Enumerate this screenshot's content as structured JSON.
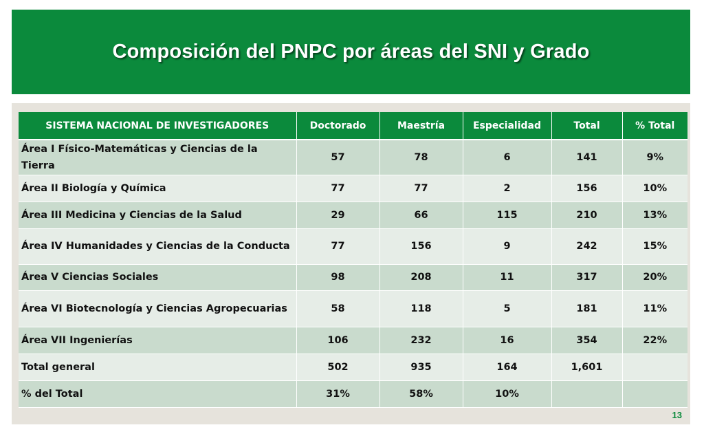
{
  "title": "Composición del PNPC  por áreas del SNI y Grado",
  "table": {
    "headers": [
      "SISTEMA NACIONAL DE INVESTIGADORES",
      "Doctorado",
      "Maestría",
      "Especialidad",
      "Total",
      "% Total"
    ],
    "rows": [
      {
        "label": "Área I Físico-Matemáticas  y Ciencias de la Tierra",
        "doctorado": "57",
        "maestria": "78",
        "especialidad": "6",
        "total": "141",
        "pct": "9%"
      },
      {
        "label": "Área II Biología y Química",
        "doctorado": "77",
        "maestria": "77",
        "especialidad": "2",
        "total": "156",
        "pct": "10%"
      },
      {
        "label": "Área III Medicina y Ciencias de la Salud",
        "doctorado": "29",
        "maestria": "66",
        "especialidad": "115",
        "total": "210",
        "pct": "13%"
      },
      {
        "label": "Área IV Humanidades  y Ciencias de la Conducta",
        "doctorado": "77",
        "maestria": "156",
        "especialidad": "9",
        "total": "242",
        "pct": "15%"
      },
      {
        "label": "Área V Ciencias Sociales",
        "doctorado": "98",
        "maestria": "208",
        "especialidad": "11",
        "total": "317",
        "pct": "20%"
      },
      {
        "label": "Área VI Biotecnología y Ciencias Agropecuarias",
        "doctorado": "58",
        "maestria": "118",
        "especialidad": "5",
        "total": "181",
        "pct": "11%"
      },
      {
        "label": "Área VII Ingenierías",
        "doctorado": "106",
        "maestria": "232",
        "especialidad": "16",
        "total": "354",
        "pct": "22%"
      },
      {
        "label": "Total general",
        "doctorado": "502",
        "maestria": "935",
        "especialidad": "164",
        "total": "1,601",
        "pct": ""
      },
      {
        "label": "% del Total",
        "doctorado": "31%",
        "maestria": "58%",
        "especialidad": "10%",
        "total": "",
        "pct": ""
      }
    ]
  },
  "page_number": "13"
}
